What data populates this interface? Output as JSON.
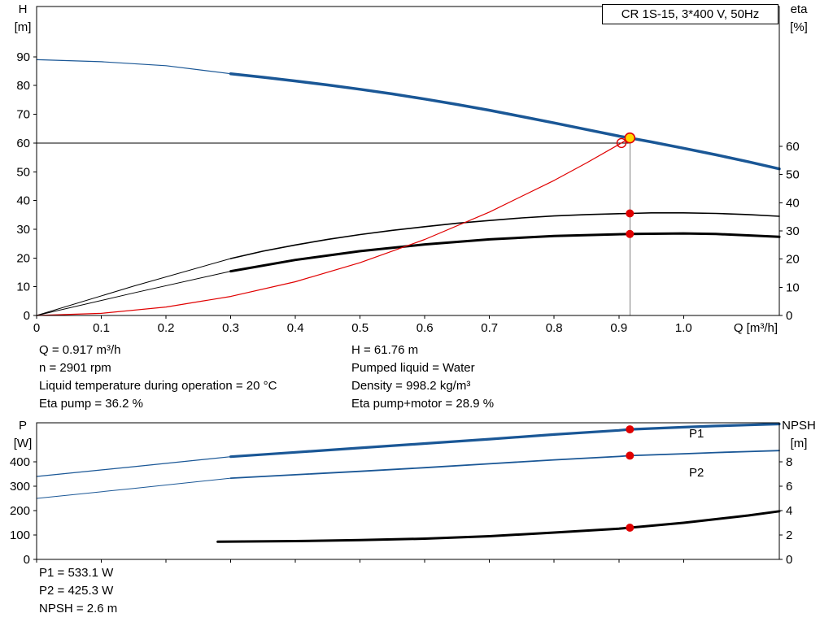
{
  "title_box": {
    "text": "CR 1S-15, 3*400 V, 50Hz"
  },
  "colors": {
    "curve_blue": "#1a5796",
    "curve_black": "#000000",
    "system_red": "#e00000",
    "duty_yellow": "#ffd800",
    "marker_red": "#e00000",
    "guide_gray": "#808080"
  },
  "results_top_left": [
    "Q = 0.917 m³/h",
    "n = 2901 rpm",
    "Liquid temperature during operation = 20 °C",
    "Eta pump = 36.2 %"
  ],
  "results_top_right": [
    "H = 61.76 m",
    "Pumped liquid = Water",
    "Density = 998.2 kg/m³",
    "Eta pump+motor = 28.9 %"
  ],
  "results_bottom": [
    "P1 = 533.1 W",
    "P2 = 425.3 W",
    "NPSH = 2.6 m"
  ],
  "chart_data": [
    {
      "name": "qh-eta-chart",
      "type": "line",
      "title": "CR 1S-15, 3*400 V, 50Hz",
      "x": {
        "label": "Q [m³/h]",
        "min": 0,
        "max": 1.148,
        "ticks": [
          0,
          0.1,
          0.2,
          0.3,
          0.4,
          0.5,
          0.6,
          0.7,
          0.8,
          0.9,
          1.0
        ],
        "tick_labels": [
          "0",
          "0.1",
          "0.2",
          "0.3",
          "0.4",
          "0.5",
          "0.6",
          "0.7",
          "0.8",
          "0.9",
          "1.0"
        ]
      },
      "y_left": {
        "label": "H",
        "unit": "[m]",
        "min": 0,
        "max": 107.5,
        "ticks": [
          0,
          10,
          20,
          30,
          40,
          50,
          60,
          70,
          80,
          90
        ],
        "tick_labels": [
          "0",
          "10",
          "20",
          "30",
          "40",
          "50",
          "60",
          "70",
          "80",
          "90"
        ]
      },
      "y_right": {
        "label": "eta",
        "unit": "[%]",
        "min": 0,
        "max": 109.6,
        "ticks": [
          0,
          10,
          20,
          30,
          40,
          50,
          60
        ],
        "tick_labels": [
          "0",
          "10",
          "20",
          "30",
          "40",
          "50",
          "60"
        ]
      },
      "ref_lines": [
        {
          "name": "requested-head-line",
          "o": "h",
          "axis": "left",
          "y": 60,
          "x1": 0,
          "x2": 0.917,
          "color": "#000000",
          "width": 1
        },
        {
          "name": "duty-flow-line",
          "o": "v",
          "axis": "left",
          "x": 0.917,
          "y1": 0,
          "y2": 61.76,
          "color": "#808080",
          "width": 1
        }
      ],
      "series": [
        {
          "name": "qh-curve-extension",
          "axis": "left",
          "color": "#1a5796",
          "width": 1.2,
          "points": [
            [
              0,
              89.0
            ],
            [
              0.1,
              88.3
            ],
            [
              0.2,
              86.9
            ],
            [
              0.3,
              84.1
            ]
          ]
        },
        {
          "name": "qh-curve",
          "axis": "left",
          "color": "#1a5796",
          "width": 3.5,
          "points": [
            [
              0.3,
              84.1
            ],
            [
              0.35,
              82.9
            ],
            [
              0.4,
              81.6
            ],
            [
              0.45,
              80.2
            ],
            [
              0.5,
              78.7
            ],
            [
              0.55,
              77.1
            ],
            [
              0.6,
              75.3
            ],
            [
              0.65,
              73.4
            ],
            [
              0.7,
              71.4
            ],
            [
              0.75,
              69.2
            ],
            [
              0.8,
              67.0
            ],
            [
              0.85,
              64.7
            ],
            [
              0.9,
              62.4
            ],
            [
              0.917,
              61.76
            ],
            [
              0.95,
              60.4
            ],
            [
              1.0,
              58.2
            ],
            [
              1.05,
              55.9
            ],
            [
              1.1,
              53.5
            ],
            [
              1.148,
              51.0
            ]
          ]
        },
        {
          "name": "eta-pump-curve-lead",
          "axis": "right",
          "color": "#000000",
          "width": 1,
          "points": [
            [
              0,
              0
            ],
            [
              0.15,
              10.4
            ],
            [
              0.3,
              20.2
            ]
          ]
        },
        {
          "name": "eta-pump-curve",
          "axis": "right",
          "color": "#000000",
          "width": 1.6,
          "points": [
            [
              0.3,
              20.2
            ],
            [
              0.35,
              22.8
            ],
            [
              0.4,
              25.0
            ],
            [
              0.45,
              27.0
            ],
            [
              0.5,
              28.7
            ],
            [
              0.55,
              30.2
            ],
            [
              0.6,
              31.5
            ],
            [
              0.65,
              32.7
            ],
            [
              0.7,
              33.7
            ],
            [
              0.75,
              34.6
            ],
            [
              0.8,
              35.3
            ],
            [
              0.85,
              35.8
            ],
            [
              0.9,
              36.1
            ],
            [
              0.917,
              36.2
            ],
            [
              0.95,
              36.4
            ],
            [
              1.0,
              36.4
            ],
            [
              1.05,
              36.2
            ],
            [
              1.1,
              35.8
            ],
            [
              1.148,
              35.2
            ]
          ]
        },
        {
          "name": "eta-pump-motor-curve-lead",
          "axis": "right",
          "color": "#000000",
          "width": 1,
          "points": [
            [
              0,
              0
            ],
            [
              0.15,
              8.0
            ],
            [
              0.3,
              15.7
            ]
          ]
        },
        {
          "name": "eta-pump-motor-curve",
          "axis": "right",
          "color": "#000000",
          "width": 3,
          "points": [
            [
              0.3,
              15.7
            ],
            [
              0.4,
              19.7
            ],
            [
              0.5,
              22.8
            ],
            [
              0.6,
              25.2
            ],
            [
              0.7,
              27.0
            ],
            [
              0.8,
              28.2
            ],
            [
              0.9,
              28.8
            ],
            [
              0.917,
              28.9
            ],
            [
              0.95,
              29.0
            ],
            [
              1.0,
              29.1
            ],
            [
              1.05,
              28.9
            ],
            [
              1.1,
              28.4
            ],
            [
              1.148,
              27.9
            ]
          ]
        },
        {
          "name": "system-curve",
          "axis": "left",
          "color": "#e00000",
          "width": 1.2,
          "points": [
            [
              0,
              0
            ],
            [
              0.1,
              0.73
            ],
            [
              0.2,
              2.94
            ],
            [
              0.3,
              6.61
            ],
            [
              0.4,
              11.75
            ],
            [
              0.5,
              18.36
            ],
            [
              0.6,
              26.44
            ],
            [
              0.7,
              35.99
            ],
            [
              0.8,
              47.0
            ],
            [
              0.85,
              53.06
            ],
            [
              0.9,
              59.48
            ],
            [
              0.917,
              61.76
            ]
          ]
        }
      ],
      "markers": [
        {
          "name": "requested-duty-marker",
          "axis": "left",
          "x": 0.904,
          "y": 60,
          "r": 5.5,
          "fill": "none",
          "stroke": "#e00000",
          "stroke_width": 1.4
        },
        {
          "name": "duty-point-marker",
          "axis": "left",
          "x": 0.917,
          "y": 61.76,
          "r": 6,
          "fill": "#ffd800",
          "stroke": "#e00000",
          "stroke_width": 1.6
        },
        {
          "name": "eta-pump-point",
          "axis": "right",
          "x": 0.917,
          "y": 36.2,
          "r": 5,
          "fill": "#e00000"
        },
        {
          "name": "eta-pump-motor-point",
          "axis": "right",
          "x": 0.917,
          "y": 28.9,
          "r": 5,
          "fill": "#e00000"
        }
      ],
      "annotations": []
    },
    {
      "name": "power-npsh-chart",
      "type": "line",
      "x": {
        "label": null,
        "min": 0,
        "max": 1.148,
        "ticks": [
          0,
          0.1,
          0.2,
          0.3,
          0.4,
          0.5,
          0.6,
          0.7,
          0.8,
          0.9,
          1.0
        ],
        "tick_labels": null
      },
      "y_left": {
        "label": "P",
        "unit": "[W]",
        "min": 0,
        "max": 560,
        "ticks": [
          0,
          100,
          200,
          300,
          400
        ],
        "tick_labels": [
          "0",
          "100",
          "200",
          "300",
          "400"
        ]
      },
      "y_right": {
        "label": "NPSH",
        "unit": "[m]",
        "min": 0,
        "max": 11.2,
        "ticks": [
          0,
          2,
          4,
          6,
          8
        ],
        "tick_labels": [
          "0",
          "2",
          "4",
          "6",
          "8"
        ]
      },
      "ref_lines": [],
      "series": [
        {
          "name": "p1-curve-lead",
          "axis": "left",
          "color": "#1a5796",
          "width": 1.2,
          "points": [
            [
              0,
              340
            ],
            [
              0.15,
              380
            ],
            [
              0.3,
              421
            ]
          ]
        },
        {
          "name": "p1-curve",
          "axis": "left",
          "color": "#1a5796",
          "width": 3.2,
          "points": [
            [
              0.3,
              421
            ],
            [
              0.4,
              439
            ],
            [
              0.5,
              457
            ],
            [
              0.6,
              475
            ],
            [
              0.7,
              493
            ],
            [
              0.8,
              512
            ],
            [
              0.9,
              529
            ],
            [
              0.917,
              533.1
            ],
            [
              1.0,
              542
            ],
            [
              1.05,
              547
            ],
            [
              1.1,
              551
            ],
            [
              1.148,
              555
            ]
          ]
        },
        {
          "name": "p2-curve-lead",
          "axis": "left",
          "color": "#1a5796",
          "width": 1,
          "points": [
            [
              0,
              250
            ],
            [
              0.15,
              291
            ],
            [
              0.3,
              333
            ]
          ]
        },
        {
          "name": "p2-curve",
          "axis": "left",
          "color": "#1a5796",
          "width": 1.8,
          "points": [
            [
              0.3,
              333
            ],
            [
              0.4,
              347
            ],
            [
              0.5,
              361
            ],
            [
              0.6,
              376
            ],
            [
              0.7,
              392
            ],
            [
              0.8,
              408
            ],
            [
              0.9,
              422
            ],
            [
              0.917,
              425.3
            ],
            [
              1.0,
              433
            ],
            [
              1.05,
              438
            ],
            [
              1.1,
              442
            ],
            [
              1.148,
              446
            ]
          ]
        },
        {
          "name": "npsh-curve",
          "axis": "right",
          "color": "#000000",
          "width": 3,
          "points": [
            [
              0.28,
              1.45
            ],
            [
              0.4,
              1.5
            ],
            [
              0.5,
              1.58
            ],
            [
              0.6,
              1.7
            ],
            [
              0.7,
              1.9
            ],
            [
              0.8,
              2.2
            ],
            [
              0.9,
              2.52
            ],
            [
              0.917,
              2.6
            ],
            [
              1.0,
              3.0
            ],
            [
              1.05,
              3.3
            ],
            [
              1.1,
              3.6
            ],
            [
              1.148,
              3.95
            ]
          ]
        }
      ],
      "markers": [
        {
          "name": "p1-point",
          "axis": "left",
          "x": 0.917,
          "y": 533.1,
          "r": 5,
          "fill": "#e00000"
        },
        {
          "name": "p2-point",
          "axis": "left",
          "x": 0.917,
          "y": 425.3,
          "r": 5,
          "fill": "#e00000"
        },
        {
          "name": "npsh-point",
          "axis": "right",
          "x": 0.917,
          "y": 2.6,
          "r": 5,
          "fill": "#e00000"
        }
      ],
      "annotations": [
        {
          "name": "p1-curve-label",
          "text": "P1",
          "axis": "left",
          "x": 1.02,
          "y": 500,
          "color": "#1a5796"
        },
        {
          "name": "p2-curve-label",
          "text": "P2",
          "axis": "left",
          "x": 1.02,
          "y": 340,
          "color": "#1a5796"
        }
      ]
    }
  ]
}
